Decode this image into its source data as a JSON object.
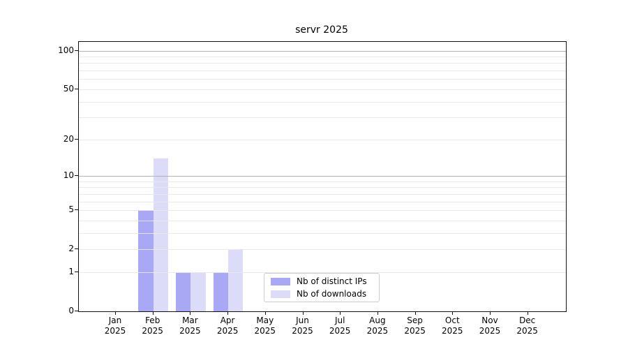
{
  "title": "servr 2025",
  "chart_data": {
    "type": "bar",
    "title": "servr 2025",
    "categories": [
      "Jan",
      "Feb",
      "Mar",
      "Apr",
      "May",
      "Jun",
      "Jul",
      "Aug",
      "Sep",
      "Oct",
      "Nov",
      "Dec"
    ],
    "category_year": "2025",
    "series": [
      {
        "name": "Nb of distinct IPs",
        "color": "#a8a8f5",
        "values": [
          0,
          5,
          1,
          1,
          0,
          0,
          0,
          0,
          0,
          0,
          0,
          0
        ]
      },
      {
        "name": "Nb of downloads",
        "color": "#dcdcf9",
        "values": [
          0,
          14,
          1,
          2,
          0,
          0,
          0,
          0,
          0,
          0,
          0,
          0
        ]
      }
    ],
    "xlabel": "",
    "ylabel": "",
    "yscale": "log1p",
    "yticks": [
      0,
      1,
      2,
      5,
      10,
      20,
      50,
      100
    ],
    "ylim": [
      0,
      116
    ],
    "grid": "on",
    "major_gridlines": [
      10,
      100
    ],
    "minor_gridlines": [
      1,
      2,
      3,
      4,
      5,
      6,
      7,
      8,
      9,
      20,
      30,
      40,
      50,
      60,
      70,
      80,
      90
    ],
    "legend_position": "lower center"
  },
  "colors": {
    "background": "#ffffff",
    "spine": "#111111",
    "grid_minor": "#e8e8e8",
    "grid_major": "#acacac",
    "legend_border": "#cccccc",
    "bar_distinct_ips": "#a8a8f5",
    "bar_downloads": "#dcdcf9"
  }
}
